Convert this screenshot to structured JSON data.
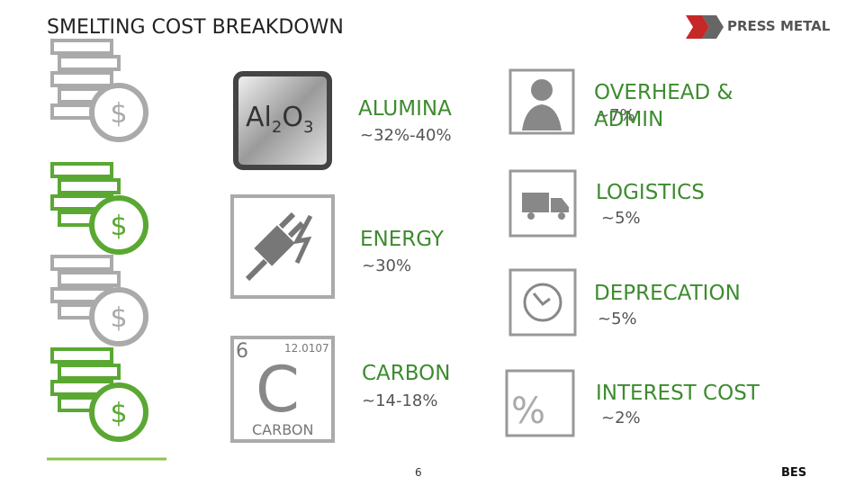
{
  "header": {
    "title": "SMELTING COST BREAKDOWN",
    "logo": "PRESS METAL"
  },
  "coin_symbol": "$",
  "tiles": {
    "alumina": {
      "symbol": [
        "Al",
        "2",
        "O",
        "3"
      ]
    },
    "carbon": {
      "number": "6",
      "mass": "12.0107",
      "symbol": "C",
      "name": "CARBON"
    }
  },
  "items": [
    {
      "label": "ALUMINA",
      "share": "~32%-40%"
    },
    {
      "label": "ENERGY",
      "share": "~30%"
    },
    {
      "label": "CARBON",
      "share": "~14-18%"
    },
    {
      "label": "OVERHEAD & ADMIN",
      "share": "~7%"
    },
    {
      "label": "LOGISTICS",
      "share": "~5%"
    },
    {
      "label": "DEPRECATION",
      "share": "~5%"
    },
    {
      "label": "INTEREST COST",
      "share": "~2%"
    }
  ],
  "footer": {
    "page": "6",
    "brand": "BES"
  }
}
